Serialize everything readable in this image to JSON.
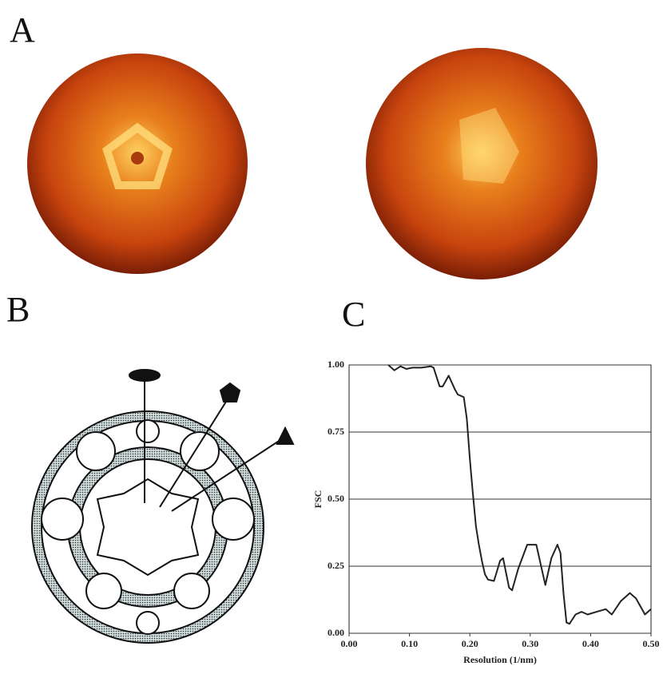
{
  "panel_labels": [
    "A",
    "B",
    "C"
  ],
  "chart_data": {
    "type": "line",
    "xlabel": "Resolution (1/nm)",
    "ylabel": "FSC",
    "xlim": [
      0,
      0.5
    ],
    "ylim": [
      0,
      1
    ],
    "xticks": [
      {
        "value": 0,
        "label": "0.00"
      },
      {
        "value": 0.1,
        "label": "0.10"
      },
      {
        "value": 0.2,
        "label": "0.20"
      },
      {
        "value": 0.3,
        "label": "0.30"
      },
      {
        "value": 0.4,
        "label": "0.40"
      },
      {
        "value": 0.5,
        "label": "0.50"
      }
    ],
    "yticks": [
      {
        "value": 0,
        "label": "0.00"
      },
      {
        "value": 0.25,
        "label": "0.25"
      },
      {
        "value": 0.5,
        "label": "0.50"
      },
      {
        "value": 0.75,
        "label": "0.75"
      },
      {
        "value": 1,
        "label": "1.00"
      }
    ],
    "grid": true,
    "series": [
      {
        "color": "#222222",
        "x": [
          0.065,
          0.075,
          0.085,
          0.095,
          0.105,
          0.12,
          0.135,
          0.14,
          0.15,
          0.155,
          0.165,
          0.175,
          0.18,
          0.19,
          0.195,
          0.2,
          0.205,
          0.21,
          0.215,
          0.22,
          0.225,
          0.23,
          0.24,
          0.25,
          0.255,
          0.265,
          0.27,
          0.28,
          0.295,
          0.31,
          0.32,
          0.325,
          0.335,
          0.345,
          0.35,
          0.355,
          0.36,
          0.365,
          0.375,
          0.385,
          0.395,
          0.41,
          0.425,
          0.435,
          0.45,
          0.465,
          0.475,
          0.485,
          0.49,
          0.5
        ],
        "values": [
          1.0,
          0.98,
          0.995,
          0.985,
          0.99,
          0.99,
          0.995,
          0.99,
          0.92,
          0.92,
          0.96,
          0.91,
          0.89,
          0.88,
          0.8,
          0.65,
          0.52,
          0.4,
          0.33,
          0.27,
          0.22,
          0.2,
          0.195,
          0.27,
          0.28,
          0.17,
          0.16,
          0.24,
          0.33,
          0.33,
          0.23,
          0.18,
          0.28,
          0.33,
          0.3,
          0.15,
          0.04,
          0.035,
          0.07,
          0.08,
          0.07,
          0.08,
          0.09,
          0.07,
          0.12,
          0.15,
          0.13,
          0.09,
          0.07,
          0.09
        ]
      }
    ]
  }
}
